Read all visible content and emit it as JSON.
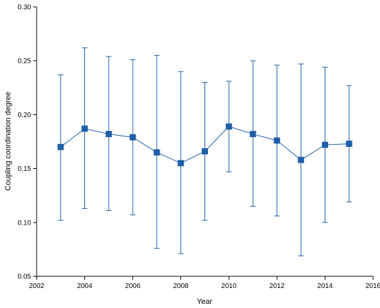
{
  "chart_data": {
    "type": "line",
    "title": "",
    "xlabel": "Year",
    "ylabel": "Coupling coordination degree",
    "xlim": [
      2002,
      2016
    ],
    "ylim": [
      0.05,
      0.3
    ],
    "x_ticks": [
      "2002",
      "2004",
      "2006",
      "2008",
      "2010",
      "2012",
      "2014",
      "2016"
    ],
    "y_ticks": [
      "0.05",
      "0.10",
      "0.15",
      "0.20",
      "0.25",
      "0.30"
    ],
    "grid": false,
    "marker": "square",
    "color": "#1f5fa8",
    "series": [
      {
        "x": [
          2003,
          2004,
          2005,
          2006,
          2007,
          2008,
          2009,
          2010,
          2011,
          2012,
          2013,
          2014,
          2015
        ],
        "y": [
          0.17,
          0.187,
          0.182,
          0.179,
          0.165,
          0.155,
          0.166,
          0.189,
          0.182,
          0.176,
          0.158,
          0.172,
          0.173
        ],
        "error_upper": [
          0.237,
          0.262,
          0.254,
          0.251,
          0.255,
          0.24,
          0.23,
          0.231,
          0.25,
          0.246,
          0.247,
          0.244,
          0.227
        ],
        "error_lower": [
          0.102,
          0.113,
          0.111,
          0.107,
          0.076,
          0.071,
          0.102,
          0.147,
          0.115,
          0.106,
          0.069,
          0.1,
          0.119
        ]
      }
    ]
  }
}
